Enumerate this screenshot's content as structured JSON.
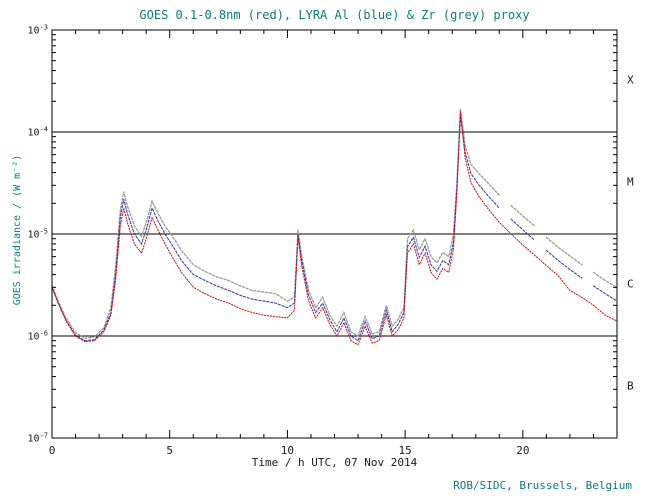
{
  "chart_data": {
    "type": "line",
    "title": "GOES 0.1-0.8nm (red), LYRA Al (blue) & Zr (grey) proxy",
    "xlabel": "Time / h UTC, 07 Nov 2014",
    "ylabel": "GOES irradiance / (W m⁻²)",
    "source": "ROB/SIDC, Brussels, Belgium",
    "x_range": [
      0,
      24
    ],
    "y_scale": "log",
    "y_range_exp": [
      -7,
      -3
    ],
    "x_major_ticks": [
      0,
      5,
      10,
      15,
      20
    ],
    "x_minor_step": 1,
    "y_tick_exponents": [
      -7,
      -6,
      -5,
      -4,
      -3
    ],
    "hlines_exp": [
      -6,
      -5,
      -4
    ],
    "grid": "off",
    "legend_position": "in-title",
    "flare_classes": [
      {
        "label": "X",
        "y": 0.00032
      },
      {
        "label": "M",
        "y": 3.2e-05
      },
      {
        "label": "C",
        "y": 3.2e-06
      },
      {
        "label": "B",
        "y": 3.2e-07
      }
    ],
    "colors": {
      "goes_red": "#cc1111",
      "lyra_al_blue": "#3b3bb0",
      "lyra_zr_grey": "#9a9a9a",
      "axis": "#000000",
      "annotation": "#0b7b7b"
    },
    "series": [
      {
        "name": "LYRA Zr proxy",
        "color": "#9a9a9a",
        "dash": "2.2,1.8",
        "width": 1.3,
        "points": [
          [
            0,
            3.15e-06
          ],
          [
            0.3,
            2.1e-06
          ],
          [
            0.6,
            1.5e-06
          ],
          [
            1.0,
            1.08e-06
          ],
          [
            1.4,
            9.5e-07
          ],
          [
            1.8,
            9.8e-07
          ],
          [
            2.2,
            1.2e-06
          ],
          [
            2.5,
            1.9e-06
          ],
          [
            2.7,
            4.8e-06
          ],
          [
            2.9,
            1.7e-05
          ],
          [
            3.05,
            2.6e-05
          ],
          [
            3.2,
            1.9e-05
          ],
          [
            3.5,
            1.2e-05
          ],
          [
            3.8,
            9.5e-06
          ],
          [
            4.0,
            1.3e-05
          ],
          [
            4.25,
            2.1e-05
          ],
          [
            4.5,
            1.6e-05
          ],
          [
            4.8,
            1.2e-05
          ],
          [
            5.1,
            9.6e-06
          ],
          [
            5.5,
            6.9e-06
          ],
          [
            6.0,
            5e-06
          ],
          [
            6.5,
            4.3e-06
          ],
          [
            7.0,
            3.8e-06
          ],
          [
            7.5,
            3.5e-06
          ],
          [
            8.0,
            3.1e-06
          ],
          [
            8.5,
            2.8e-06
          ],
          [
            9.0,
            2.7e-06
          ],
          [
            9.5,
            2.6e-06
          ],
          [
            10.0,
            2.2e-06
          ],
          [
            10.3,
            2.4e-06
          ],
          [
            10.45,
            1.1e-05
          ],
          [
            10.6,
            6.2e-06
          ],
          [
            10.9,
            2.8e-06
          ],
          [
            11.2,
            1.9e-06
          ],
          [
            11.5,
            2.4e-06
          ],
          [
            11.8,
            1.6e-06
          ],
          [
            12.1,
            1.25e-06
          ],
          [
            12.4,
            1.7e-06
          ],
          [
            12.7,
            1.1e-06
          ],
          [
            13.0,
            1e-06
          ],
          [
            13.3,
            1.55e-06
          ],
          [
            13.6,
            1.05e-06
          ],
          [
            13.9,
            1.1e-06
          ],
          [
            14.2,
            2e-06
          ],
          [
            14.45,
            1.25e-06
          ],
          [
            14.7,
            1.45e-06
          ],
          [
            14.95,
            1.9e-06
          ],
          [
            15.1,
            9e-06
          ],
          [
            15.35,
            1.1e-05
          ],
          [
            15.6,
            7e-06
          ],
          [
            15.85,
            9e-06
          ],
          [
            16.1,
            6e-06
          ],
          [
            16.35,
            5.2e-06
          ],
          [
            16.6,
            6.6e-06
          ],
          [
            16.85,
            6e-06
          ],
          [
            17.05,
            9.8e-06
          ],
          [
            17.2,
            3.2e-05
          ],
          [
            17.35,
            0.00017
          ],
          [
            17.55,
            7.3e-05
          ],
          [
            17.8,
            4.8e-05
          ],
          [
            18.1,
            4e-05
          ],
          [
            18.5,
            3.2e-05
          ],
          [
            19.0,
            2.4e-05
          ],
          null,
          [
            19.5,
            1.9e-05
          ],
          [
            20.0,
            1.5e-05
          ],
          [
            20.5,
            1.2e-05
          ],
          null,
          [
            21.0,
            9.3e-06
          ],
          [
            21.5,
            7.4e-06
          ],
          [
            22.0,
            6.1e-06
          ],
          [
            22.5,
            5e-06
          ],
          null,
          [
            23.0,
            4.2e-06
          ],
          [
            23.5,
            3.5e-06
          ],
          [
            24.0,
            3e-06
          ]
        ]
      },
      {
        "name": "LYRA Al proxy",
        "color": "#3b3bb0",
        "dash": "2.2,1.8",
        "width": 1.1,
        "points": [
          [
            0,
            3e-06
          ],
          [
            0.3,
            2e-06
          ],
          [
            0.6,
            1.42e-06
          ],
          [
            1.0,
            1.02e-06
          ],
          [
            1.4,
            9e-07
          ],
          [
            1.8,
            9.2e-07
          ],
          [
            2.2,
            1.14e-06
          ],
          [
            2.5,
            1.7e-06
          ],
          [
            2.7,
            4e-06
          ],
          [
            2.9,
            1.45e-05
          ],
          [
            3.05,
            2.2e-05
          ],
          [
            3.2,
            1.6e-05
          ],
          [
            3.5,
            1e-05
          ],
          [
            3.8,
            8e-06
          ],
          [
            4.0,
            1.1e-05
          ],
          [
            4.25,
            1.8e-05
          ],
          [
            4.5,
            1.35e-05
          ],
          [
            4.8,
            1e-05
          ],
          [
            5.1,
            7.8e-06
          ],
          [
            5.5,
            5.5e-06
          ],
          [
            6.0,
            4e-06
          ],
          [
            6.5,
            3.5e-06
          ],
          [
            7.0,
            3.1e-06
          ],
          [
            7.5,
            2.8e-06
          ],
          [
            8.0,
            2.5e-06
          ],
          [
            8.5,
            2.3e-06
          ],
          [
            9.0,
            2.2e-06
          ],
          [
            9.5,
            2.1e-06
          ],
          [
            10.0,
            1.9e-06
          ],
          [
            10.3,
            2.1e-06
          ],
          [
            10.45,
            1e-05
          ],
          [
            10.6,
            5.6e-06
          ],
          [
            10.9,
            2.5e-06
          ],
          [
            11.2,
            1.7e-06
          ],
          [
            11.5,
            2.1e-06
          ],
          [
            11.8,
            1.45e-06
          ],
          [
            12.1,
            1.1e-06
          ],
          [
            12.4,
            1.5e-06
          ],
          [
            12.7,
            1e-06
          ],
          [
            13.0,
            9e-07
          ],
          [
            13.3,
            1.4e-06
          ],
          [
            13.6,
            9.4e-07
          ],
          [
            13.9,
            1e-06
          ],
          [
            14.2,
            1.8e-06
          ],
          [
            14.45,
            1.1e-06
          ],
          [
            14.7,
            1.3e-06
          ],
          [
            14.95,
            1.7e-06
          ],
          [
            15.1,
            7.5e-06
          ],
          [
            15.35,
            9.3e-06
          ],
          [
            15.6,
            5.9e-06
          ],
          [
            15.85,
            7.6e-06
          ],
          [
            16.1,
            5e-06
          ],
          [
            16.35,
            4.3e-06
          ],
          [
            16.6,
            5.5e-06
          ],
          [
            16.85,
            5e-06
          ],
          [
            17.05,
            8.2e-06
          ],
          [
            17.2,
            2.8e-05
          ],
          [
            17.35,
            0.000145
          ],
          [
            17.55,
            6.3e-05
          ],
          [
            17.8,
            3.9e-05
          ],
          [
            18.1,
            3.1e-05
          ],
          [
            18.5,
            2.4e-05
          ],
          [
            19.0,
            1.8e-05
          ],
          null,
          [
            19.5,
            1.4e-05
          ],
          [
            20.0,
            1.1e-05
          ],
          [
            20.5,
            8.7e-06
          ],
          null,
          [
            21.0,
            6.9e-06
          ],
          [
            21.5,
            5.5e-06
          ],
          [
            22.0,
            4.5e-06
          ],
          [
            22.5,
            3.7e-06
          ],
          null,
          [
            23.0,
            3.1e-06
          ],
          [
            23.5,
            2.6e-06
          ],
          [
            24.0,
            2.2e-06
          ]
        ]
      },
      {
        "name": "GOES 0.1-0.8nm",
        "color": "#cc1111",
        "dash": "1.3,1.6",
        "width": 1.0,
        "points": [
          [
            0,
            3e-06
          ],
          [
            0.3,
            2e-06
          ],
          [
            0.6,
            1.4e-06
          ],
          [
            1.0,
            1e-06
          ],
          [
            1.4,
            8.8e-07
          ],
          [
            1.8,
            9e-07
          ],
          [
            2.2,
            1.1e-06
          ],
          [
            2.5,
            1.6e-06
          ],
          [
            2.7,
            3.5e-06
          ],
          [
            2.9,
            1.2e-05
          ],
          [
            3.05,
            1.8e-05
          ],
          [
            3.2,
            1.3e-05
          ],
          [
            3.5,
            8e-06
          ],
          [
            3.8,
            6.5e-06
          ],
          [
            4.0,
            9e-06
          ],
          [
            4.25,
            1.45e-05
          ],
          [
            4.5,
            1.1e-05
          ],
          [
            4.8,
            8e-06
          ],
          [
            5.1,
            6e-06
          ],
          [
            5.5,
            4.2e-06
          ],
          [
            6.0,
            3e-06
          ],
          [
            6.5,
            2.6e-06
          ],
          [
            7.0,
            2.3e-06
          ],
          [
            7.5,
            2.1e-06
          ],
          [
            8.0,
            1.85e-06
          ],
          [
            8.5,
            1.7e-06
          ],
          [
            9.0,
            1.6e-06
          ],
          [
            9.5,
            1.55e-06
          ],
          [
            10.0,
            1.5e-06
          ],
          [
            10.3,
            1.8e-06
          ],
          [
            10.45,
            9.5e-06
          ],
          [
            10.6,
            5e-06
          ],
          [
            10.9,
            2.2e-06
          ],
          [
            11.2,
            1.5e-06
          ],
          [
            11.5,
            1.9e-06
          ],
          [
            11.8,
            1.3e-06
          ],
          [
            12.1,
            1e-06
          ],
          [
            12.4,
            1.35e-06
          ],
          [
            12.7,
            9e-07
          ],
          [
            13.0,
            8.2e-07
          ],
          [
            13.3,
            1.25e-06
          ],
          [
            13.6,
            8.5e-07
          ],
          [
            13.9,
            9e-07
          ],
          [
            14.2,
            1.6e-06
          ],
          [
            14.45,
            1e-06
          ],
          [
            14.7,
            1.15e-06
          ],
          [
            14.95,
            1.5e-06
          ],
          [
            15.1,
            6.5e-06
          ],
          [
            15.35,
            8e-06
          ],
          [
            15.6,
            5e-06
          ],
          [
            15.85,
            6.5e-06
          ],
          [
            16.1,
            4.2e-06
          ],
          [
            16.35,
            3.6e-06
          ],
          [
            16.6,
            4.6e-06
          ],
          [
            16.85,
            4.2e-06
          ],
          [
            17.05,
            7e-06
          ],
          [
            17.2,
            2.5e-05
          ],
          [
            17.35,
            0.00016
          ],
          [
            17.55,
            5.5e-05
          ],
          [
            17.8,
            3.2e-05
          ],
          [
            18.1,
            2.4e-05
          ],
          [
            18.5,
            1.8e-05
          ],
          [
            19.0,
            1.3e-05
          ],
          [
            19.5,
            1e-05
          ],
          [
            20.0,
            7.8e-06
          ],
          [
            20.5,
            6.2e-06
          ],
          [
            21.0,
            4.9e-06
          ],
          [
            21.5,
            3.9e-06
          ],
          [
            22.0,
            2.8e-06
          ],
          [
            22.5,
            2.4e-06
          ],
          [
            23.0,
            2e-06
          ],
          [
            23.5,
            1.6e-06
          ],
          [
            24.0,
            1.4e-06
          ]
        ]
      }
    ]
  }
}
